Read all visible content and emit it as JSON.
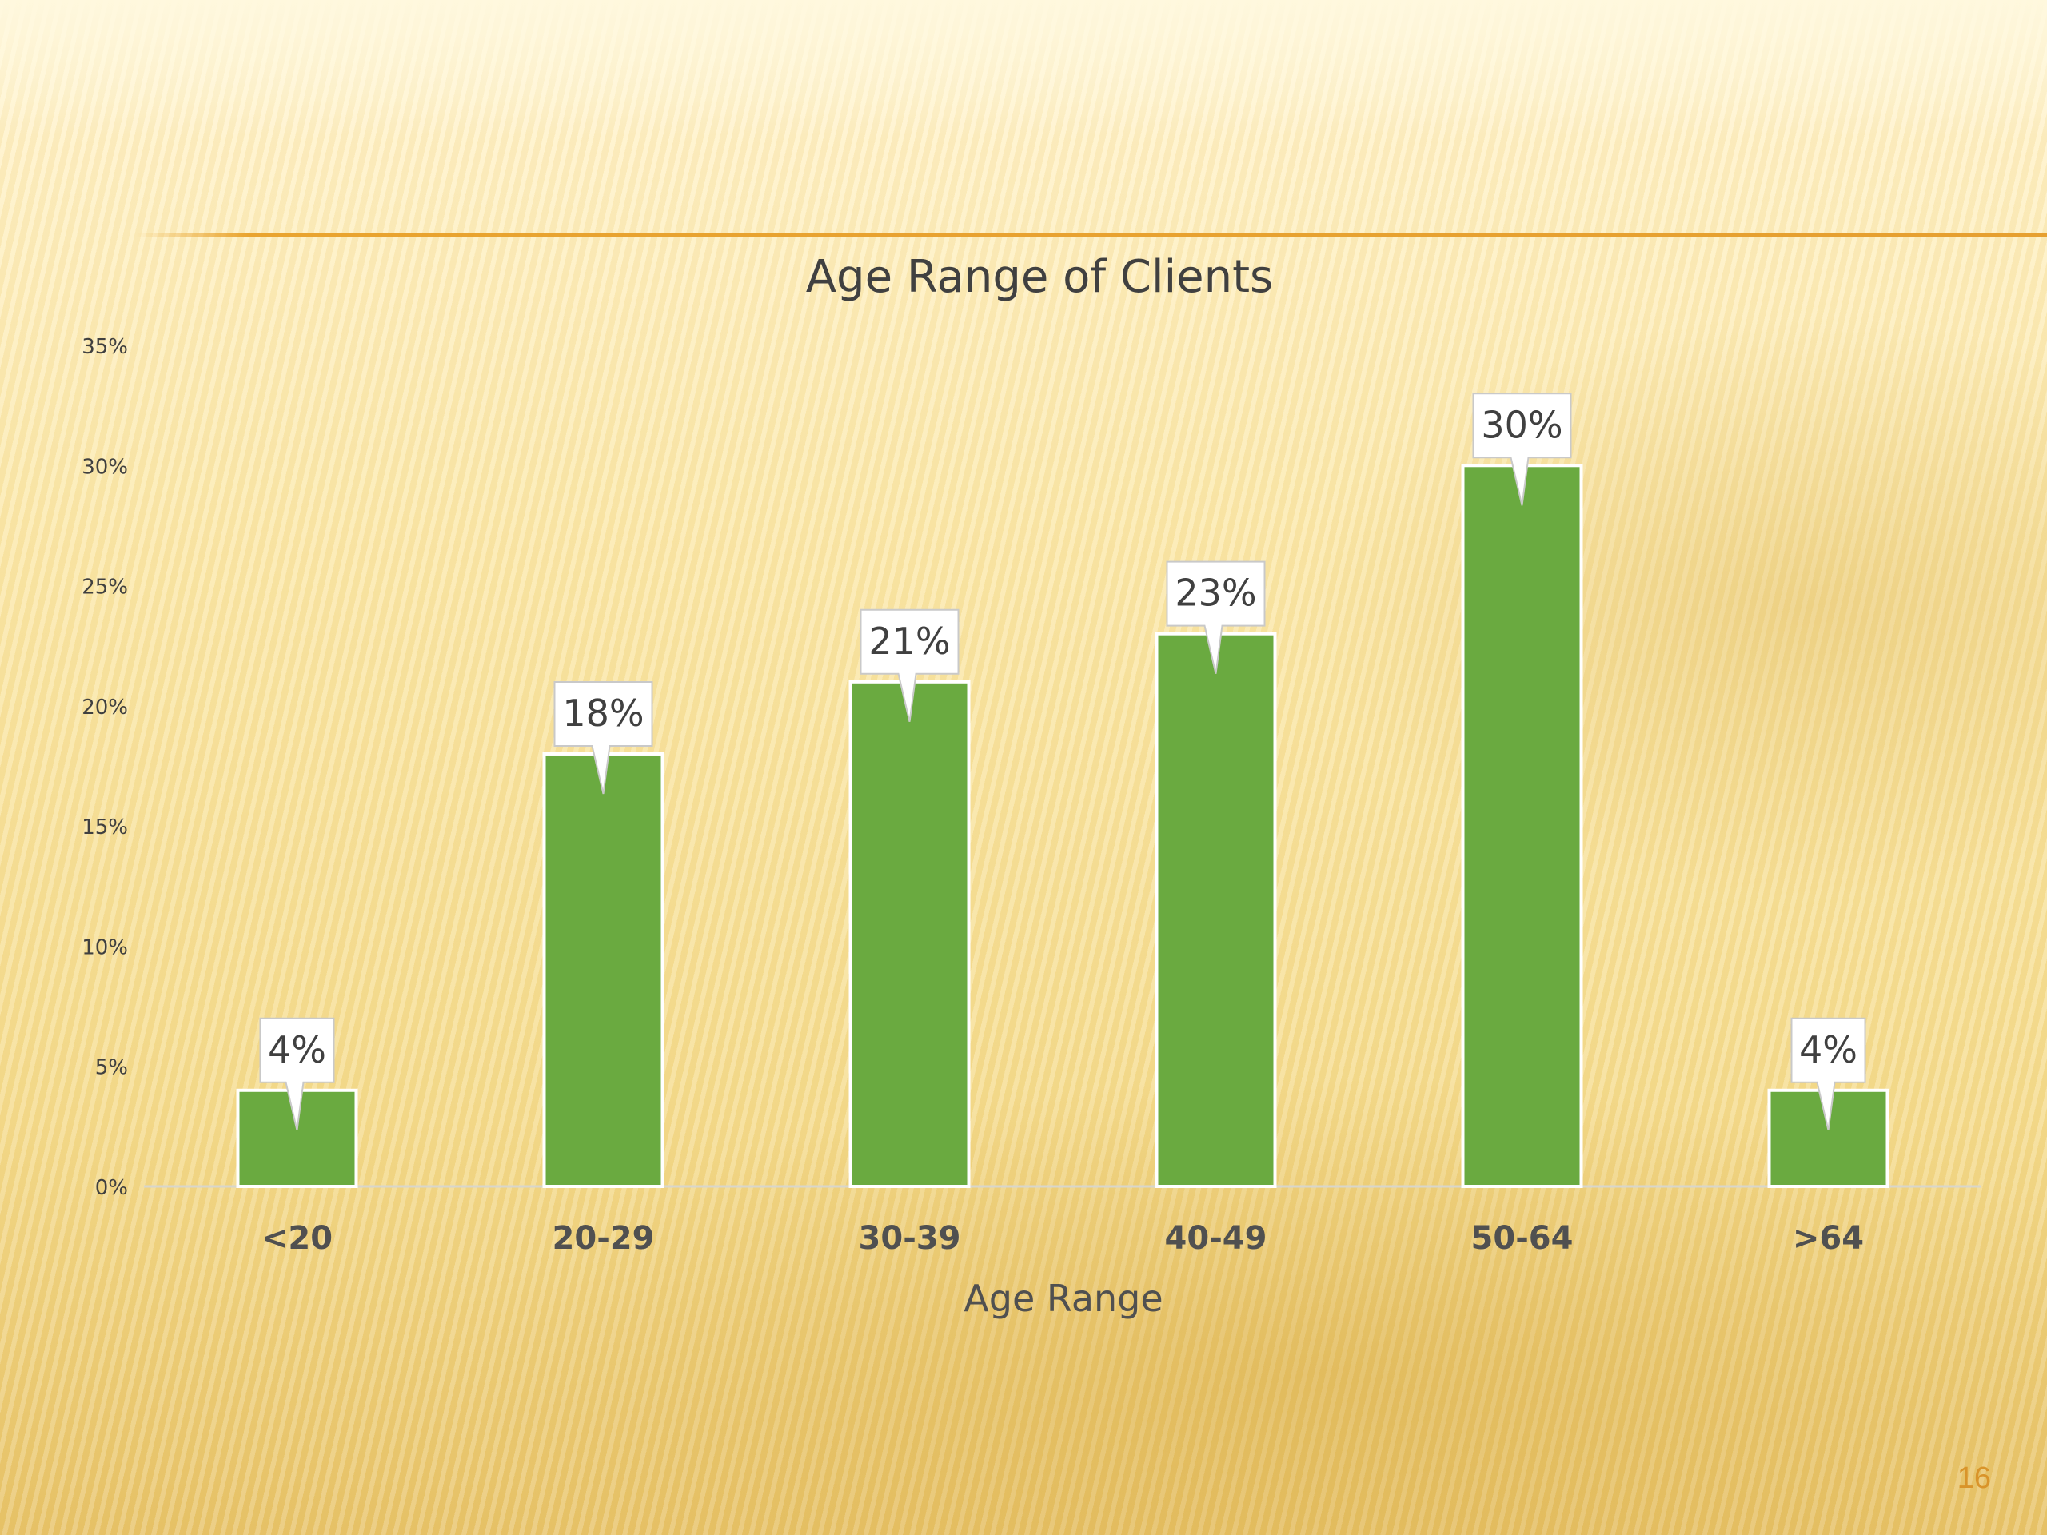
{
  "chart_data": {
    "type": "bar",
    "title": "Age Range of Clients",
    "xlabel": "Age Range",
    "ylabel": "",
    "categories": [
      "<20",
      "20-29",
      "30-39",
      "40-49",
      "50-64",
      ">64"
    ],
    "values": [
      4,
      18,
      21,
      23,
      30,
      4
    ],
    "data_labels": [
      "4%",
      "18%",
      "21%",
      "23%",
      "30%",
      "4%"
    ],
    "ylim": [
      0,
      35
    ],
    "yticks": [
      0,
      5,
      10,
      15,
      20,
      25,
      30,
      35
    ],
    "ytick_labels": [
      "0%",
      "5%",
      "10%",
      "15%",
      "20%",
      "25%",
      "30%",
      "35%"
    ],
    "bar_color": "#6aaa40",
    "grid": false,
    "legend": "none"
  },
  "slide": {
    "page_number": "16"
  },
  "colors": {
    "accent_rule": "#e6a030",
    "page_number": "#d9942a",
    "text": "#404040"
  }
}
